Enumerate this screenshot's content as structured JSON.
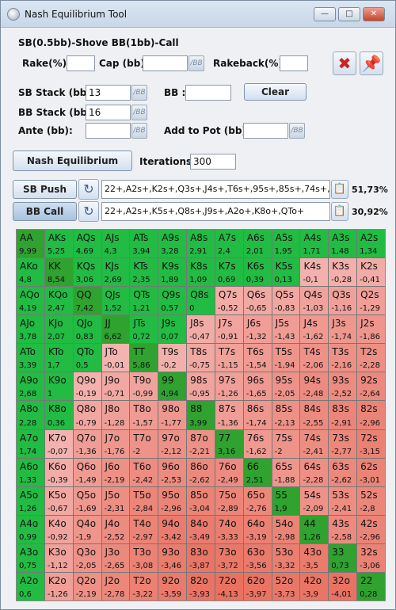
{
  "window": {
    "title": "Nash Equilibrium Tool",
    "min": "—",
    "max": "□",
    "close": "✕"
  },
  "scenario": "SB(0.5bb)-Shove BB(1bb)-Call",
  "labels": {
    "rake": "Rake(%) :",
    "cap": "Cap (bb):",
    "rakeback": "Rakeback(%) :",
    "sb_stack": "SB Stack (bb):",
    "bb_stack": "BB Stack (bb):",
    "ante": "Ante (bb):",
    "bb": "BB :",
    "add_pot": "Add to Pot (bb):",
    "iterations": "Iterations :",
    "bb_unit": "/BB"
  },
  "fields": {
    "rake": "",
    "cap": "",
    "rakeback": "",
    "sb_stack": "13",
    "bb_stack": "16",
    "ante": "",
    "bb": "",
    "add_pot": "",
    "iterations": "300"
  },
  "buttons": {
    "clear": "Clear",
    "nash": "Nash Equilibrium",
    "sb_push": "SB Push",
    "bb_call": "BB Call"
  },
  "ranges": {
    "sb_push": "22+,A2s+,K2s+,Q3s+,J4s+,T6s+,95s+,85s+,74s+,64",
    "sb_push_pct": "51,73%",
    "bb_call": "22+,A2s+,K5s+,Q8s+,J9s+,A2o+,K8o+,QTo+",
    "bb_call_pct": "30,92%"
  },
  "colors": {
    "both": "#22bb44",
    "push": "#4fd07c",
    "call": "#2fa22f",
    "fold_light": "#f3b3b0",
    "fold_dark": "#e87060"
  },
  "hand_grid": [
    [
      [
        "AA",
        "9,99"
      ],
      [
        "AKs",
        "5,25"
      ],
      [
        "AQs",
        "4,69"
      ],
      [
        "AJs",
        "4,3"
      ],
      [
        "ATs",
        "3,94"
      ],
      [
        "A9s",
        "3,28"
      ],
      [
        "A8s",
        "2,91"
      ],
      [
        "A7s",
        "2,4"
      ],
      [
        "A6s",
        "2,01"
      ],
      [
        "A5s",
        "1,95"
      ],
      [
        "A4s",
        "1,71"
      ],
      [
        "A3s",
        "1,48"
      ],
      [
        "A2s",
        "1,34"
      ]
    ],
    [
      [
        "AKo",
        "4,8"
      ],
      [
        "KK",
        "8,54"
      ],
      [
        "KQs",
        "3,06"
      ],
      [
        "KJs",
        "2,69"
      ],
      [
        "KTs",
        "2,35"
      ],
      [
        "K9s",
        "1,89"
      ],
      [
        "K8s",
        "1,09"
      ],
      [
        "K7s",
        "0,69"
      ],
      [
        "K6s",
        "0,39"
      ],
      [
        "K5s",
        "0,13"
      ],
      [
        "K4s",
        "-0,1"
      ],
      [
        "K3s",
        "-0,28"
      ],
      [
        "K2s",
        "-0,41"
      ]
    ],
    [
      [
        "AQo",
        "4,19"
      ],
      [
        "KQo",
        "2,47"
      ],
      [
        "QQ",
        "7,42"
      ],
      [
        "QJs",
        "1,52"
      ],
      [
        "QTs",
        "1,21"
      ],
      [
        "Q9s",
        "0,57"
      ],
      [
        "Q8s",
        "0"
      ],
      [
        "Q7s",
        "-0,52"
      ],
      [
        "Q6s",
        "-0,65"
      ],
      [
        "Q5s",
        "-0,83"
      ],
      [
        "Q4s",
        "-1,03"
      ],
      [
        "Q3s",
        "-1,16"
      ],
      [
        "Q2s",
        "-1,29"
      ]
    ],
    [
      [
        "AJo",
        "3,78"
      ],
      [
        "KJo",
        "2,07"
      ],
      [
        "QJo",
        "0,83"
      ],
      [
        "JJ",
        "6,62"
      ],
      [
        "JTs",
        "0,72"
      ],
      [
        "J9s",
        "0,07"
      ],
      [
        "J8s",
        "-0,47"
      ],
      [
        "J7s",
        "-0,91"
      ],
      [
        "J6s",
        "-1,32"
      ],
      [
        "J5s",
        "-1,43"
      ],
      [
        "J4s",
        "-1,62"
      ],
      [
        "J3s",
        "-1,74"
      ],
      [
        "J2s",
        "-1,86"
      ]
    ],
    [
      [
        "ATo",
        "3,39"
      ],
      [
        "KTo",
        "1,7"
      ],
      [
        "QTo",
        "0,5"
      ],
      [
        "JTo",
        "-0,01"
      ],
      [
        "TT",
        "5,86"
      ],
      [
        "T9s",
        "-0,2"
      ],
      [
        "T8s",
        "-0,75"
      ],
      [
        "T7s",
        "-1,15"
      ],
      [
        "T6s",
        "-1,54"
      ],
      [
        "T5s",
        "-1,94"
      ],
      [
        "T4s",
        "-2,06"
      ],
      [
        "T3s",
        "-2,16"
      ],
      [
        "T2s",
        "-2,28"
      ]
    ],
    [
      [
        "A9o",
        "2,68"
      ],
      [
        "K9o",
        "1"
      ],
      [
        "Q9o",
        "-0,19"
      ],
      [
        "J9o",
        "-0,71"
      ],
      [
        "T9o",
        "-0,99"
      ],
      [
        "99",
        "4,94"
      ],
      [
        "98s",
        "-0,95"
      ],
      [
        "97s",
        "-1,26"
      ],
      [
        "96s",
        "-1,65"
      ],
      [
        "95s",
        "-2,05"
      ],
      [
        "94s",
        "-2,48"
      ],
      [
        "93s",
        "-2,52"
      ],
      [
        "92s",
        "-2,64"
      ]
    ],
    [
      [
        "A8o",
        "2,28"
      ],
      [
        "K8o",
        "0,36"
      ],
      [
        "Q8o",
        "-0,79"
      ],
      [
        "J8o",
        "-1,28"
      ],
      [
        "T8o",
        "-1,57"
      ],
      [
        "98o",
        "-1,77"
      ],
      [
        "88",
        "3,99"
      ],
      [
        "87s",
        "-1,36"
      ],
      [
        "86s",
        "-1,74"
      ],
      [
        "85s",
        "-2,13"
      ],
      [
        "84s",
        "-2,55"
      ],
      [
        "83s",
        "-2,91"
      ],
      [
        "82s",
        "-2,96"
      ]
    ],
    [
      [
        "A7o",
        "1,74"
      ],
      [
        "K7o",
        "-0,07"
      ],
      [
        "Q7o",
        "-1,36"
      ],
      [
        "J7o",
        "-1,76"
      ],
      [
        "T7o",
        "-2"
      ],
      [
        "97o",
        "-2,12"
      ],
      [
        "87o",
        "-2,21"
      ],
      [
        "77",
        "3,16"
      ],
      [
        "76s",
        "-1,62"
      ],
      [
        "75s",
        "-2"
      ],
      [
        "74s",
        "-2,41"
      ],
      [
        "73s",
        "-2,77"
      ],
      [
        "72s",
        "-3,15"
      ]
    ],
    [
      [
        "A6o",
        "1,33"
      ],
      [
        "K6o",
        "-0,39"
      ],
      [
        "Q6o",
        "-1,49"
      ],
      [
        "J6o",
        "-2,19"
      ],
      [
        "T6o",
        "-2,42"
      ],
      [
        "96o",
        "-2,53"
      ],
      [
        "86o",
        "-2,62"
      ],
      [
        "76o",
        "-2,49"
      ],
      [
        "66",
        "2,51"
      ],
      [
        "65s",
        "-1,88"
      ],
      [
        "64s",
        "-2,28"
      ],
      [
        "63s",
        "-2,62"
      ],
      [
        "62s",
        "-3,01"
      ]
    ],
    [
      [
        "A5o",
        "1,26"
      ],
      [
        "K5o",
        "-0,67"
      ],
      [
        "Q5o",
        "-1,69"
      ],
      [
        "J5o",
        "-2,31"
      ],
      [
        "T5o",
        "-2,84"
      ],
      [
        "95o",
        "-2,96"
      ],
      [
        "85o",
        "-3,04"
      ],
      [
        "75o",
        "-2,89"
      ],
      [
        "65o",
        "-2,76"
      ],
      [
        "55",
        "1,9"
      ],
      [
        "54s",
        "-2,09"
      ],
      [
        "53s",
        "-2,41"
      ],
      [
        "52s",
        "-2,8"
      ]
    ],
    [
      [
        "A4o",
        "0,99"
      ],
      [
        "K4o",
        "-0,92"
      ],
      [
        "Q4o",
        "-1,9"
      ],
      [
        "J4o",
        "-2,52"
      ],
      [
        "T4o",
        "-2,97"
      ],
      [
        "94o",
        "-3,42"
      ],
      [
        "84o",
        "-3,49"
      ],
      [
        "74o",
        "-3,33"
      ],
      [
        "64o",
        "-3,19"
      ],
      [
        "54o",
        "-2,98"
      ],
      [
        "44",
        "1,26"
      ],
      [
        "43s",
        "-2,58"
      ],
      [
        "42s",
        "-2,96"
      ]
    ],
    [
      [
        "A3o",
        "0,75"
      ],
      [
        "K3o",
        "-1,12"
      ],
      [
        "Q3o",
        "-2,05"
      ],
      [
        "J3o",
        "-2,65"
      ],
      [
        "T3o",
        "-3,08"
      ],
      [
        "93o",
        "-3,46"
      ],
      [
        "83o",
        "-3,87"
      ],
      [
        "73o",
        "-3,72"
      ],
      [
        "63o",
        "-3,56"
      ],
      [
        "53o",
        "-3,32"
      ],
      [
        "43o",
        "-3,5"
      ],
      [
        "33",
        "0,73"
      ],
      [
        "32s",
        "-3,06"
      ]
    ],
    [
      [
        "A2o",
        "0,6"
      ],
      [
        "K2o",
        "-1,26"
      ],
      [
        "Q2o",
        "-2,19"
      ],
      [
        "J2o",
        "-2,78"
      ],
      [
        "T2o",
        "-3,22"
      ],
      [
        "92o",
        "-3,59"
      ],
      [
        "82o",
        "-3,93"
      ],
      [
        "72o",
        "-4,13"
      ],
      [
        "62o",
        "-3,97"
      ],
      [
        "52o",
        "-3,73"
      ],
      [
        "42o",
        "-3,9"
      ],
      [
        "32o",
        "-4,01"
      ],
      [
        "22",
        "0,28"
      ]
    ]
  ],
  "bb_call_hands": [
    "AA",
    "AKs",
    "AQs",
    "AJs",
    "ATs",
    "A9s",
    "A8s",
    "A7s",
    "A6s",
    "A5s",
    "A4s",
    "A3s",
    "A2s",
    "AKo",
    "KK",
    "KQs",
    "KJs",
    "KTs",
    "K9s",
    "K8s",
    "K7s",
    "K6s",
    "K5s",
    "AQo",
    "KQo",
    "QQ",
    "QJs",
    "QTs",
    "Q9s",
    "Q8s",
    "AJo",
    "KJo",
    "QJo",
    "JJ",
    "JTs",
    "J9s",
    "ATo",
    "KTo",
    "QTo",
    "TT",
    "A9o",
    "K9o",
    "99",
    "A8o",
    "K8o",
    "88",
    "A7o",
    "77",
    "A6o",
    "66",
    "A5o",
    "55",
    "A4o",
    "44",
    "A3o",
    "33",
    "A2o",
    "22"
  ]
}
